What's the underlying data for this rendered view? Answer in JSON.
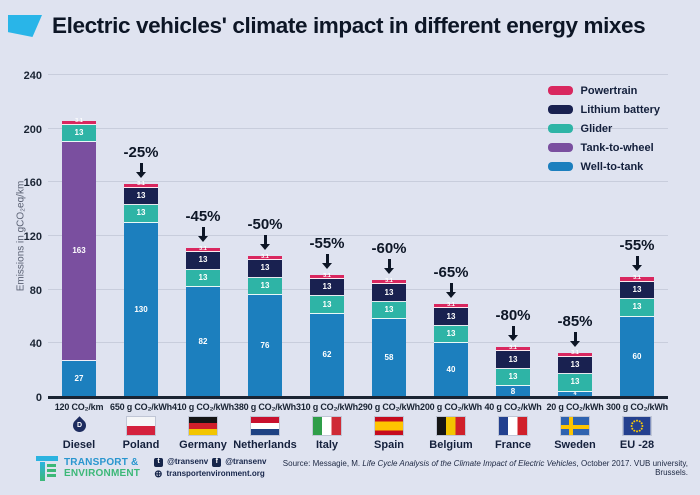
{
  "title": "Electric vehicles' climate impact in different energy mixes",
  "colors": {
    "powertrain": "#d9275f",
    "lithium_battery": "#192150",
    "glider": "#2eb4a6",
    "tank_to_wheel": "#7a4f9f",
    "well_to_tank": "#1c7fbe",
    "accent_cyan": "#29b5e8",
    "axis": "#1a2433",
    "background": "#dfe3f0"
  },
  "legend": [
    {
      "key": "powertrain",
      "label": "Powertrain"
    },
    {
      "key": "lithium_battery",
      "label": "Lithium battery"
    },
    {
      "key": "glider",
      "label": "Glider"
    },
    {
      "key": "tank_to_wheel",
      "label": "Tank-to-wheel"
    },
    {
      "key": "well_to_tank",
      "label": "Well-to-tank"
    }
  ],
  "chart_data": {
    "type": "bar",
    "stacked": true,
    "title": "Electric vehicles' climate impact in different energy mixes",
    "ylabel": "Emissions in gCO₂eq/km",
    "ylim": [
      0,
      240
    ],
    "yticks": [
      0,
      40,
      80,
      120,
      160,
      200,
      240
    ],
    "grid": true,
    "legend_position": "top-right",
    "series_order_bottom_to_top_note": "each bar lists segments bottom to top",
    "bars": [
      {
        "tick": "120 CO₂/km",
        "country": "Diesel",
        "flag": "diesel",
        "delta": null,
        "segments": [
          {
            "key": "well_to_tank",
            "value": 27
          },
          {
            "key": "tank_to_wheel",
            "value": 163
          },
          {
            "key": "glider",
            "value": 13
          },
          {
            "key": "powertrain",
            "value": 3.1
          }
        ]
      },
      {
        "tick": "650 g CO₂/kWh",
        "country": "Poland",
        "flag": "poland",
        "delta": "-25%",
        "segments": [
          {
            "key": "well_to_tank",
            "value": 130
          },
          {
            "key": "glider",
            "value": 13
          },
          {
            "key": "lithium_battery",
            "value": 13
          },
          {
            "key": "powertrain",
            "value": 3.1
          }
        ]
      },
      {
        "tick": "410 g CO₂/kWh",
        "country": "Germany",
        "flag": "germany",
        "delta": "-45%",
        "segments": [
          {
            "key": "well_to_tank",
            "value": 82
          },
          {
            "key": "glider",
            "value": 13
          },
          {
            "key": "lithium_battery",
            "value": 13
          },
          {
            "key": "powertrain",
            "value": 3.1
          }
        ]
      },
      {
        "tick": "380 g CO₂/kWh",
        "country": "Netherlands",
        "flag": "netherlands",
        "delta": "-50%",
        "segments": [
          {
            "key": "well_to_tank",
            "value": 76
          },
          {
            "key": "glider",
            "value": 13
          },
          {
            "key": "lithium_battery",
            "value": 13
          },
          {
            "key": "powertrain",
            "value": 3.1
          }
        ]
      },
      {
        "tick": "310 g CO₂/kWh",
        "country": "Italy",
        "flag": "italy",
        "delta": "-55%",
        "segments": [
          {
            "key": "well_to_tank",
            "value": 62
          },
          {
            "key": "glider",
            "value": 13
          },
          {
            "key": "lithium_battery",
            "value": 13
          },
          {
            "key": "powertrain",
            "value": 3.1
          }
        ]
      },
      {
        "tick": "290 g CO₂/kWh",
        "country": "Spain",
        "flag": "spain",
        "delta": "-60%",
        "segments": [
          {
            "key": "well_to_tank",
            "value": 58
          },
          {
            "key": "glider",
            "value": 13
          },
          {
            "key": "lithium_battery",
            "value": 13
          },
          {
            "key": "powertrain",
            "value": 3.1
          }
        ]
      },
      {
        "tick": "200 g CO₂/kWh",
        "country": "Belgium",
        "flag": "belgium",
        "delta": "-65%",
        "segments": [
          {
            "key": "well_to_tank",
            "value": 40
          },
          {
            "key": "glider",
            "value": 13
          },
          {
            "key": "lithium_battery",
            "value": 13
          },
          {
            "key": "powertrain",
            "value": 3.1
          }
        ]
      },
      {
        "tick": "40 g CO₂/kWh",
        "country": "France",
        "flag": "france",
        "delta": "-80%",
        "segments": [
          {
            "key": "well_to_tank",
            "value": 8
          },
          {
            "key": "glider",
            "value": 13
          },
          {
            "key": "lithium_battery",
            "value": 13
          },
          {
            "key": "powertrain",
            "value": 3.1
          }
        ]
      },
      {
        "tick": "20 g CO₂/kWh",
        "country": "Sweden",
        "flag": "sweden",
        "delta": "-85%",
        "segments": [
          {
            "key": "well_to_tank",
            "value": 4
          },
          {
            "key": "glider",
            "value": 13
          },
          {
            "key": "lithium_battery",
            "value": 13
          },
          {
            "key": "powertrain",
            "value": 3.1
          }
        ]
      },
      {
        "tick": "300 g CO₂/kWh",
        "country": "EU -28",
        "flag": "eu",
        "delta": "-55%",
        "segments": [
          {
            "key": "well_to_tank",
            "value": 60
          },
          {
            "key": "glider",
            "value": 13
          },
          {
            "key": "lithium_battery",
            "value": 13
          },
          {
            "key": "powertrain",
            "value": 3.1
          }
        ]
      }
    ]
  },
  "footer": {
    "org_line1": "TRANSPORT &",
    "org_line2": "ENVIRONMENT",
    "twitter_handle": "@transenv",
    "facebook_handle": "@transenv",
    "website": "transportenvironment.org",
    "source_prefix": "Source: Messagie, M. ",
    "source_italic": "Life Cycle Analysis of the Climate Impact of Electric Vehicles",
    "source_suffix": ", October 2017. VUB university, Brussels."
  }
}
